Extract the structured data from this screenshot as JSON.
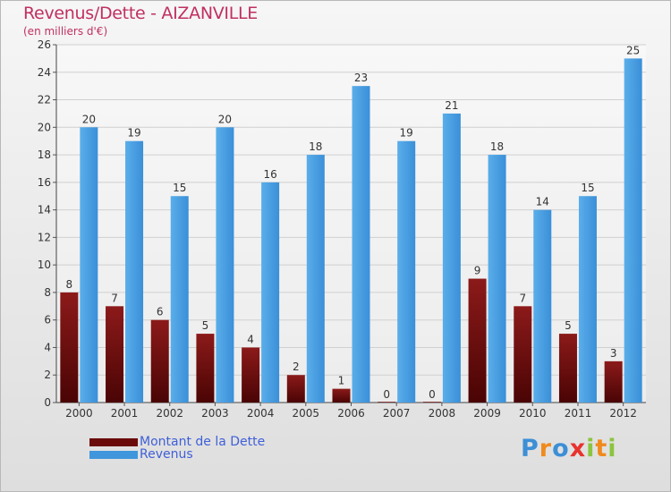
{
  "header": {
    "title": "Revenus/Dette - AIZANVILLE",
    "subtitle": "(en milliers d'€)"
  },
  "chart_data": {
    "type": "bar",
    "categories": [
      "2000",
      "2001",
      "2002",
      "2003",
      "2004",
      "2005",
      "2006",
      "2007",
      "2008",
      "2009",
      "2010",
      "2011",
      "2012"
    ],
    "series": [
      {
        "name": "Montant de la Dette",
        "color": "#7a0e0e",
        "values": [
          8,
          7,
          6,
          5,
          4,
          2,
          1,
          0,
          0,
          9,
          7,
          5,
          3
        ]
      },
      {
        "name": "Revenus",
        "color": "#3f96dc",
        "values": [
          20,
          19,
          15,
          20,
          16,
          18,
          23,
          19,
          21,
          18,
          14,
          15,
          25
        ]
      }
    ],
    "ylim": [
      0,
      26
    ],
    "yticks": [
      0,
      2,
      4,
      6,
      8,
      10,
      12,
      14,
      16,
      18,
      20,
      22,
      24,
      26
    ],
    "grid": true,
    "legend": "bottom-left"
  },
  "legend": {
    "items": [
      {
        "label": "Montant de la Dette",
        "color": "#6b0a0a"
      },
      {
        "label": "Revenus",
        "color": "#3f96dc"
      }
    ]
  },
  "logo": {
    "letters": [
      "P",
      "r",
      "o",
      "x",
      "i",
      "t",
      "i"
    ],
    "colors": [
      "#3c8fd6",
      "#f08a1c",
      "#3c8fd6",
      "#e8322e",
      "#8bc53f",
      "#f08a1c",
      "#8bc53f"
    ]
  }
}
